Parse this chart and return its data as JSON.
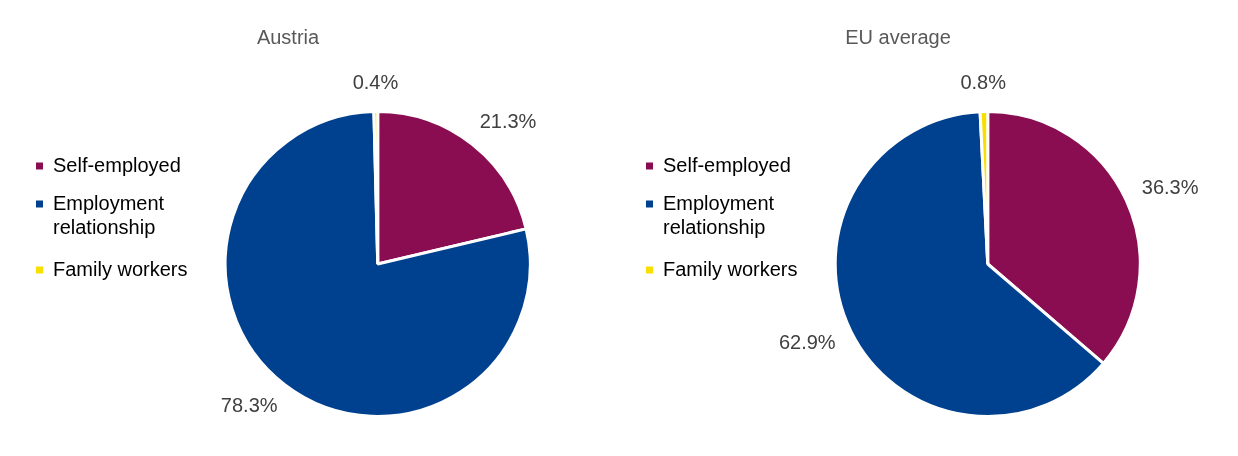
{
  "chart_data": [
    {
      "type": "pie",
      "title": "Austria",
      "categories": [
        "Self-employed",
        "Employment relationship",
        "Family workers"
      ],
      "values": [
        21.3,
        78.3,
        0.4
      ],
      "colors": [
        "#8b0d51",
        "#00418f",
        "#f7e000"
      ],
      "value_labels": [
        "21.3%",
        "78.3%",
        "0.4%"
      ],
      "legend": "left"
    },
    {
      "type": "pie",
      "title": "EU average",
      "categories": [
        "Self-employed",
        "Employment relationship",
        "Family workers"
      ],
      "values": [
        36.3,
        62.9,
        0.8
      ],
      "colors": [
        "#8b0d51",
        "#00418f",
        "#f7e000"
      ],
      "value_labels": [
        "36.3%",
        "62.9%",
        "0.8%"
      ],
      "legend": "left"
    }
  ]
}
